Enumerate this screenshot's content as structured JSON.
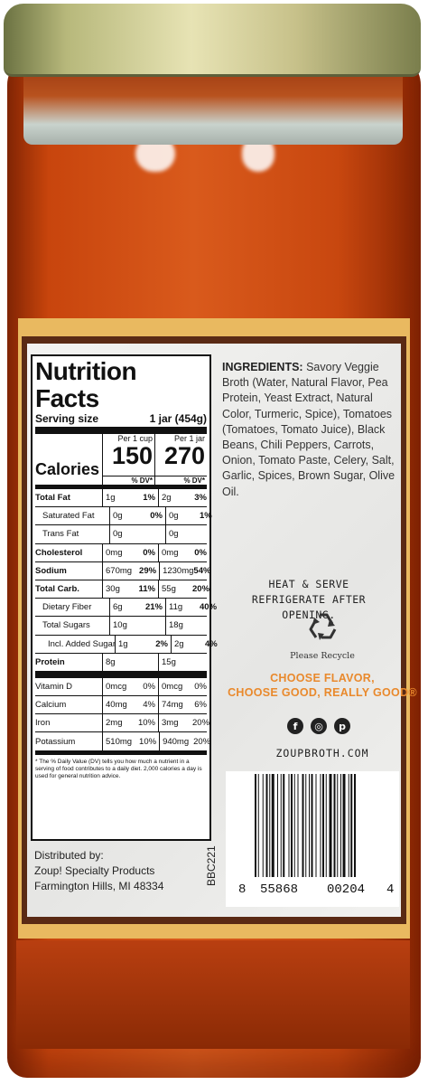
{
  "nutrition": {
    "title": "Nutrition Facts",
    "serving_label": "Serving size",
    "serving_value": "1 jar (454g)",
    "calories_label": "Calories",
    "col1_header": "Per 1 cup",
    "col2_header": "Per 1 jar",
    "col1_calories": "150",
    "col2_calories": "270",
    "dv_header": "% DV*",
    "rows": [
      {
        "name": "Total Fat",
        "a1": "1g",
        "p1": "1%",
        "a2": "2g",
        "p2": "3%"
      },
      {
        "name": "Saturated Fat",
        "a1": "0g",
        "p1": "0%",
        "a2": "0g",
        "p2": "1%"
      },
      {
        "name": "Trans Fat",
        "a1": "0g",
        "p1": "",
        "a2": "0g",
        "p2": ""
      },
      {
        "name": "Cholesterol",
        "a1": "0mg",
        "p1": "0%",
        "a2": "0mg",
        "p2": "0%"
      },
      {
        "name": "Sodium",
        "a1": "670mg",
        "p1": "29%",
        "a2": "1230mg",
        "p2": "54%"
      },
      {
        "name": "Total Carb.",
        "a1": "30g",
        "p1": "11%",
        "a2": "55g",
        "p2": "20%"
      },
      {
        "name": "Dietary Fiber",
        "a1": "6g",
        "p1": "21%",
        "a2": "11g",
        "p2": "40%"
      },
      {
        "name": "Total Sugars",
        "a1": "10g",
        "p1": "",
        "a2": "18g",
        "p2": ""
      },
      {
        "name": "Incl. Added Sugars",
        "a1": "1g",
        "p1": "2%",
        "a2": "2g",
        "p2": "4%"
      },
      {
        "name": "Protein",
        "a1": "8g",
        "p1": "",
        "a2": "15g",
        "p2": ""
      },
      {
        "name": "Vitamin D",
        "a1": "0mcg",
        "p1": "0%",
        "a2": "0mcg",
        "p2": "0%"
      },
      {
        "name": "Calcium",
        "a1": "40mg",
        "p1": "4%",
        "a2": "74mg",
        "p2": "6%"
      },
      {
        "name": "Iron",
        "a1": "2mg",
        "p1": "10%",
        "a2": "3mg",
        "p2": "20%"
      },
      {
        "name": "Potassium",
        "a1": "510mg",
        "p1": "10%",
        "a2": "940mg",
        "p2": "20%"
      }
    ],
    "footnote": "* The % Daily Value (DV) tells you how much a nutrient in a serving of food contributes to a daily diet. 2,000 calories a day is used for general nutrition advice."
  },
  "distributor": {
    "line1": "Distributed by:",
    "line2": "Zoup! Specialty Products",
    "line3": "Farmington Hills, MI 48334"
  },
  "lot_code": "BBC221",
  "ingredients": {
    "label": "INGREDIENTS:",
    "text": "Savory Veggie Broth (Water, Natural Flavor, Pea Protein, Yeast Extract, Natural Color, Turmeric, Spice), Tomatoes (Tomatoes, Tomato Juice), Black Beans, Chili Peppers, Carrots, Onion, Tomato Paste, Celery, Salt, Garlic, Spices, Brown Sugar, Olive Oil."
  },
  "instructions": {
    "line1": "HEAT & SERVE",
    "line2": "REFRIGERATE AFTER OPENING."
  },
  "recycle_text": "Please Recycle",
  "slogan": {
    "line1": "CHOOSE FLAVOR,",
    "line2": "CHOOSE GOOD, REALLY GOOD®"
  },
  "social_icons": [
    "facebook-icon",
    "instagram-icon",
    "pinterest-icon"
  ],
  "website": "ZOUPBROTH.COM",
  "barcode": {
    "left_digit": "8",
    "group1": "55868",
    "group2": "00204",
    "right_digit": "4"
  },
  "colors": {
    "sauce": "#d4531a",
    "label_border": "#e9b960",
    "slogan": "#e9892c",
    "lid": "#c7c18a"
  }
}
